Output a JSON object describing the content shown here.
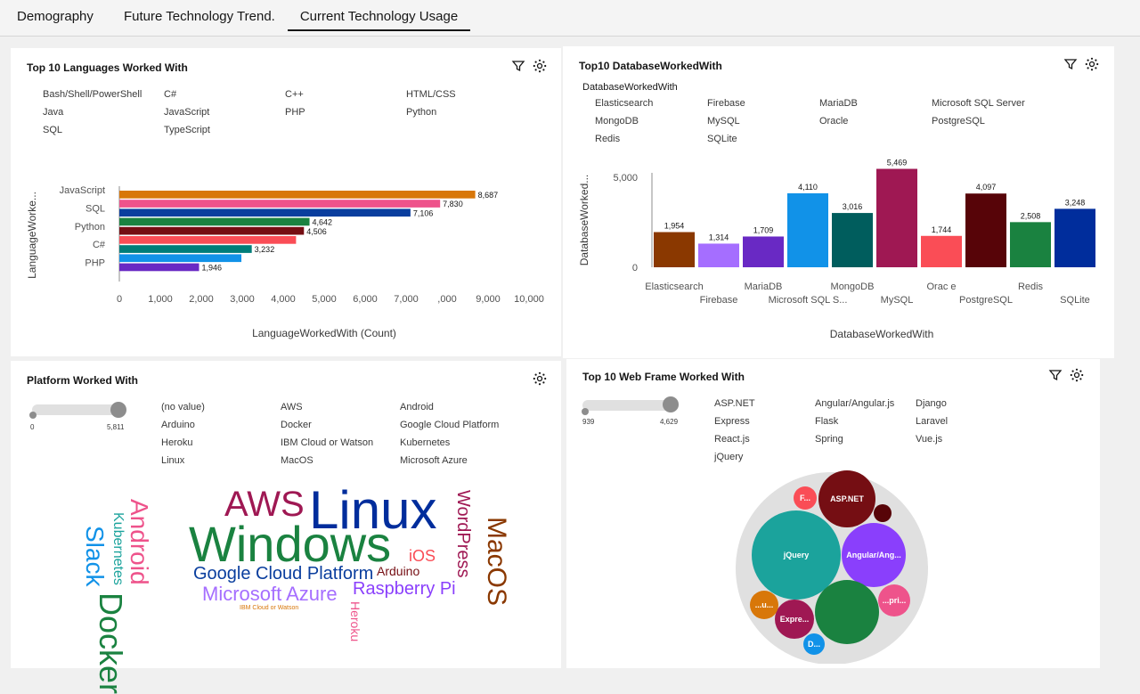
{
  "tabs": [
    "Demography",
    "Future Technology Trend.",
    "Current Technology Usage"
  ],
  "languages_panel": {
    "title": "Top 10 Languages Worked With",
    "legend": [
      "Bash/Shell/PowerShell",
      "C#",
      "C++",
      "HTML/CSS",
      "Java",
      "JavaScript",
      "PHP",
      "Python",
      "SQL",
      "TypeScript"
    ],
    "ylabel": "LanguageWorke...",
    "xlabel": "LanguageWorkedWith (Count)"
  },
  "database_panel": {
    "title": "Top10 DatabaseWorkedWith",
    "legend_title": "DatabaseWorkedWith",
    "legend": [
      "Elasticsearch",
      "Firebase",
      "MariaDB",
      "Microsoft SQL Server",
      "MongoDB",
      "MySQL",
      "Oracle",
      "PostgreSQL",
      "Redis",
      "SQLite"
    ],
    "ylabel": "DatabaseWorked...",
    "xlabel": "DatabaseWorkedWith"
  },
  "platform_panel": {
    "title": "Platform Worked With",
    "slider_min": "0",
    "slider_max": "5,811",
    "legend": [
      "(no value)",
      "AWS",
      "Android",
      "Arduino",
      "Docker",
      "Google Cloud Platform",
      "Heroku",
      "IBM Cloud or Watson",
      "Kubernetes",
      "Linux",
      "MacOS",
      "Microsoft Azure"
    ],
    "words": [
      "Windows",
      "Linux",
      "Docker",
      "AWS",
      "MacOS",
      "Android",
      "Slack",
      "Kubernetes",
      "WordPress",
      "Google Cloud Platform",
      "Microsoft Azure",
      "Raspberry Pi",
      "iOS",
      "Arduino",
      "Heroku",
      "IBM Cloud or Watson"
    ]
  },
  "webframe_panel": {
    "title": "Top 10 Web Frame Worked With",
    "slider_min": "939",
    "slider_max": "4,629",
    "legend": [
      "ASP.NET",
      "Angular/Angular.js",
      "Django",
      "Express",
      "Flask",
      "Laravel",
      "React.js",
      "Spring",
      "Vue.js",
      "jQuery"
    ],
    "bubbles": [
      "jQuery",
      "ASP.NET",
      "Angular/Ang...",
      "...pri...",
      "F...",
      "Expre...",
      "D...",
      "...u..."
    ]
  },
  "colors": {
    "orange": "#d87709",
    "pink": "#ee538b",
    "navy": "#0a3e9e",
    "green": "#1a8240",
    "maroon": "#750e13",
    "coral": "#fa4d56",
    "purple": "#6929c4",
    "teal": "#007d79",
    "blue": "#1192e8",
    "lavender": "#a56eff",
    "magenta": "#9f1853",
    "darkmaroon": "#570408",
    "darkteal": "#005d5d",
    "brown": "#8a3800",
    "darkblue": "#002d9c",
    "cyan": "#1ba39c"
  },
  "chart_data": [
    {
      "type": "bar",
      "orientation": "horizontal",
      "title": "Top 10 Languages Worked With",
      "categories": [
        "JavaScript",
        "SQL",
        "Python",
        "C#",
        "PHP"
      ],
      "series_values": [
        8687,
        7830,
        7106,
        4642,
        4506,
        4313,
        3232,
        2979,
        1946
      ],
      "tick_labels_y": [
        "JavaScript",
        "SQL",
        "Python",
        "C#",
        "PHP"
      ],
      "bar_labels": [
        "8,687",
        "7,830",
        "7,106",
        "4,642",
        "4,506",
        "",
        "3,232",
        "",
        "1,946"
      ],
      "xticks": [
        "0",
        "1,000",
        "2,000",
        "3,000",
        "4,000",
        "5,000",
        "6,000",
        "7,000",
        ",000",
        "9,000",
        "10,000"
      ],
      "xlim": [
        0,
        10000
      ],
      "xlabel": "LanguageWorkedWith (Count)",
      "ylabel": "LanguageWorke..."
    },
    {
      "type": "bar",
      "title": "Top10 DatabaseWorkedWith",
      "categories": [
        "Elasticsearch",
        "Firebase",
        "MariaDB",
        "Microsoft SQL S...",
        "MongoDB",
        "MySQL",
        "Orac e",
        "PostgreSQL",
        "Redis",
        "SQLite"
      ],
      "values": [
        1954,
        1314,
        1709,
        4110,
        3016,
        5469,
        1744,
        4097,
        2508,
        3248
      ],
      "value_labels": [
        "1,954",
        "1,314",
        "1,709",
        "4,110",
        "3,016",
        "5,469",
        "1,744",
        "4,097",
        "2,508",
        "3,248"
      ],
      "yticks": [
        "0",
        "5,000"
      ],
      "ylim": [
        0,
        6000
      ],
      "xlabel": "DatabaseWorkedWith",
      "ylabel": "DatabaseWorked..."
    }
  ]
}
